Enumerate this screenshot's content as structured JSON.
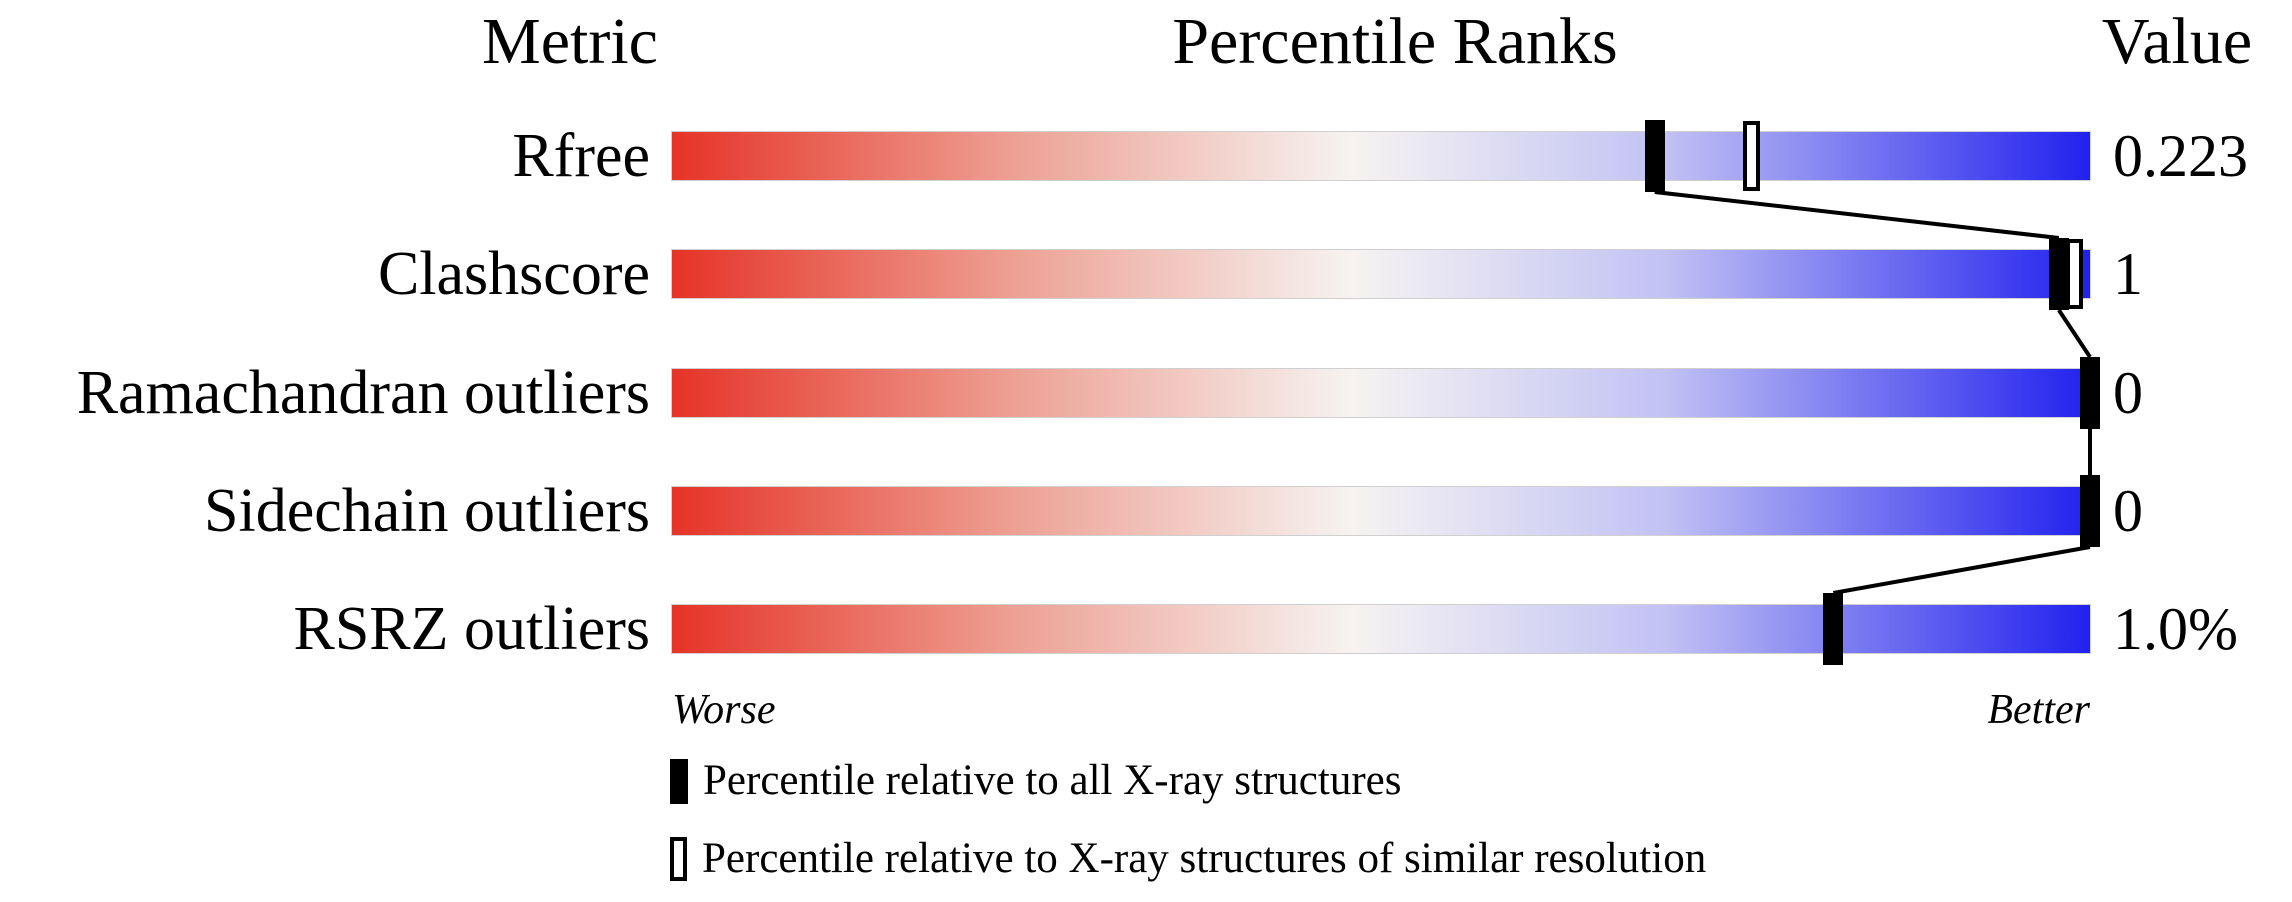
{
  "header": {
    "metric": "Metric",
    "percentile_ranks": "Percentile Ranks",
    "value": "Value"
  },
  "axis": {
    "worse": "Worse",
    "better": "Better"
  },
  "legend": [
    {
      "marker": "filled-black-box",
      "label": "Percentile relative to all X-ray structures"
    },
    {
      "marker": "hollow-box",
      "label": "Percentile relative to X-ray structures of similar resolution"
    }
  ],
  "colors": {
    "worst_end": "#e63327",
    "mid": "#f6f3f1",
    "best_end": "#2121ef",
    "marker": "#000000",
    "connector_line": "#000000"
  },
  "chart_data": {
    "type": "slider-percentile",
    "title": "Percentile Ranks",
    "orientation": "horizontal",
    "scale": "percentile 0 (worse, red) to 100 (better, blue)",
    "rows": [
      {
        "label": "Rfree",
        "value": "0.223",
        "percentile_all": 69.3,
        "percentile_similar": 76.1
      },
      {
        "label": "Clashscore",
        "value": "1",
        "percentile_all": 97.8,
        "percentile_similar": 98.9
      },
      {
        "label": "Ramachandran outliers",
        "value": "0",
        "percentile_all": 100.0,
        "percentile_similar": 100.0
      },
      {
        "label": "Sidechain outliers",
        "value": "0",
        "percentile_all": 100.0,
        "percentile_similar": 100.0
      },
      {
        "label": "RSRZ outliers",
        "value": "1.0%",
        "percentile_all": 81.9,
        "percentile_similar": null
      }
    ]
  }
}
